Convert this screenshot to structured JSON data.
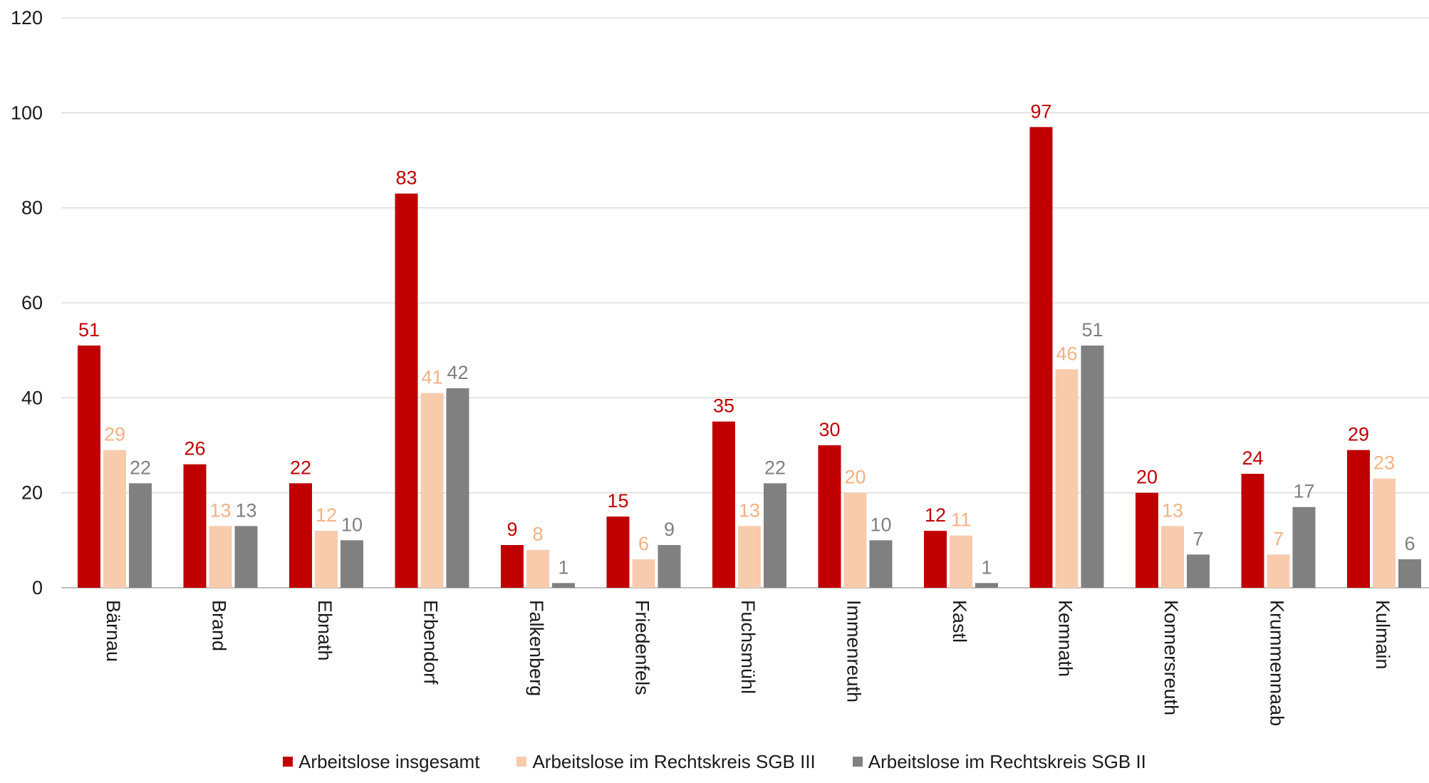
{
  "chart_data": {
    "type": "bar",
    "title": "",
    "xlabel": "",
    "ylabel": "",
    "ylim": [
      0,
      120
    ],
    "yticks": [
      0,
      20,
      40,
      60,
      80,
      100,
      120
    ],
    "grid": true,
    "legend_position": "bottom",
    "categories": [
      "Bärnau",
      "Brand",
      "Ebnath",
      "Erbendorf",
      "Falkenberg",
      "Friedenfels",
      "Fuchsmühl",
      "Immenreuth",
      "Kastl",
      "Kemnath",
      "Konnersreuth",
      "Krummennaab",
      "Kulmain"
    ],
    "series": [
      {
        "name": "Arbeitslose insgesamt",
        "color": "#c00000",
        "label_color": "#c00000",
        "values": [
          51,
          26,
          22,
          83,
          9,
          15,
          35,
          30,
          12,
          97,
          20,
          24,
          29
        ]
      },
      {
        "name": "Arbeitslose im Rechtskreis SGB III",
        "color": "#f8cbad",
        "label_color": "#f4b183",
        "values": [
          29,
          13,
          12,
          41,
          8,
          6,
          13,
          20,
          11,
          46,
          13,
          7,
          23
        ]
      },
      {
        "name": "Arbeitslose im Rechtskreis SGB II",
        "color": "#808080",
        "label_color": "#7f7f7f",
        "values": [
          22,
          13,
          10,
          42,
          1,
          9,
          22,
          10,
          1,
          51,
          7,
          17,
          6
        ]
      }
    ]
  }
}
